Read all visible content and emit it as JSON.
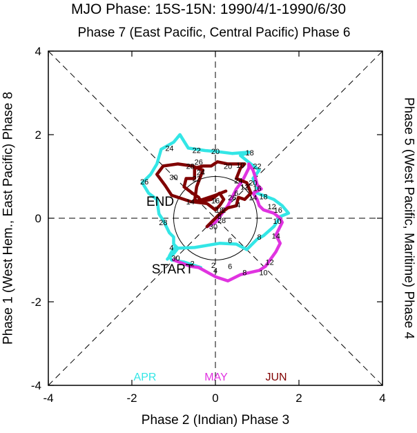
{
  "title": "MJO Phase: 15S-15N: 1990/4/1-1990/6/30",
  "labels": {
    "top": "Phase 7 (East Pacific, Central Pacific) Phase 6",
    "bottom": "Phase 2 (Indian) Phase 3",
    "left": "Phase 1 (West Hem., East Pacific) Phase 8",
    "right": "Phase 5 (West Pacific, Maritime) Phase 4",
    "start": "START",
    "end": "END"
  },
  "chart_data": {
    "type": "line",
    "xlim": [
      -4,
      4
    ],
    "ylim": [
      -4,
      4
    ],
    "xticks": [
      "-4",
      "-2",
      "0",
      "2",
      "4"
    ],
    "yticks": [
      "-4",
      "-2",
      "0",
      "2",
      "4"
    ],
    "reference_circle_radius": 1,
    "colors": {
      "APR": "#33e6e6",
      "MAY": "#e033e0",
      "JUN": "#800000"
    },
    "series": [
      {
        "name": "APR",
        "points": [
          [
            -0.35,
            -1.18
          ],
          [
            -0.75,
            -1.05
          ],
          [
            -1.05,
            -1.0
          ],
          [
            -1.1,
            -0.9
          ],
          [
            -1.0,
            -0.72
          ],
          [
            -0.5,
            -0.7
          ],
          [
            0.1,
            -0.6
          ],
          [
            0.5,
            -0.62
          ],
          [
            0.75,
            -0.75
          ],
          [
            1.0,
            -0.5
          ],
          [
            1.15,
            -0.42
          ],
          [
            1.4,
            -0.2
          ],
          [
            1.5,
            -0.05
          ],
          [
            1.5,
            0.02
          ],
          [
            1.75,
            0.12
          ],
          [
            1.6,
            0.3
          ],
          [
            1.4,
            0.45
          ],
          [
            1.0,
            0.6
          ],
          [
            1.0,
            0.75
          ],
          [
            0.9,
            0.95
          ],
          [
            1.05,
            1.15
          ],
          [
            0.85,
            1.3
          ],
          [
            0.6,
            1.5
          ],
          [
            0.8,
            1.58
          ],
          [
            0.4,
            1.55
          ],
          [
            0.0,
            1.6
          ],
          [
            -0.25,
            1.62
          ],
          [
            -0.65,
            1.68
          ],
          [
            -0.85,
            2.0
          ],
          [
            -1.0,
            1.82
          ],
          [
            -1.3,
            1.65
          ],
          [
            -1.4,
            1.3
          ],
          [
            -1.55,
            1.05
          ],
          [
            -1.65,
            0.95
          ],
          [
            -1.75,
            0.85
          ],
          [
            -1.6,
            0.6
          ],
          [
            -1.4,
            0.45
          ],
          [
            -1.35,
            0.1
          ],
          [
            -1.25,
            -0.05
          ],
          [
            -1.1,
            -0.35
          ],
          [
            -1.0,
            -0.45
          ],
          [
            -1.0,
            -0.62
          ],
          [
            -0.9,
            -0.72
          ],
          [
            -1.0,
            -0.85
          ],
          [
            -1.1,
            -0.92
          ],
          [
            -1.15,
            -0.98
          ]
        ],
        "day_labels": [
          {
            "text": "2",
            "x": -0.05,
            "y": -1.12
          },
          {
            "text": "4",
            "x": -1.05,
            "y": -0.7
          },
          {
            "text": "6",
            "x": 0.35,
            "y": -0.53
          },
          {
            "text": "8",
            "x": 1.05,
            "y": -0.45
          },
          {
            "text": "10",
            "x": 1.48,
            "y": -0.07
          },
          {
            "text": "12",
            "x": 1.35,
            "y": 0.28
          },
          {
            "text": "14",
            "x": 0.9,
            "y": 0.5
          },
          {
            "text": "16",
            "x": 1.0,
            "y": 0.72
          },
          {
            "text": "18",
            "x": 0.82,
            "y": 1.57
          },
          {
            "text": "20",
            "x": 0.0,
            "y": 1.6
          },
          {
            "text": "22",
            "x": -0.45,
            "y": 1.63
          },
          {
            "text": "24",
            "x": -1.1,
            "y": 1.68
          },
          {
            "text": "26",
            "x": -1.7,
            "y": 0.88
          },
          {
            "text": "28",
            "x": -1.25,
            "y": -0.1
          },
          {
            "text": "30",
            "x": -0.95,
            "y": -0.95
          }
        ]
      },
      {
        "name": "MAY",
        "points": [
          [
            -1.0,
            -1.0
          ],
          [
            -0.6,
            -1.15
          ],
          [
            -0.4,
            -1.18
          ],
          [
            0.0,
            -1.4
          ],
          [
            0.3,
            -1.5
          ],
          [
            0.6,
            -1.35
          ],
          [
            1.05,
            -1.25
          ],
          [
            1.2,
            -1.15
          ],
          [
            1.45,
            -0.8
          ],
          [
            1.55,
            -0.6
          ],
          [
            1.45,
            -0.4
          ],
          [
            1.6,
            -0.1
          ],
          [
            1.55,
            0.0
          ],
          [
            1.4,
            0.12
          ],
          [
            1.15,
            0.2
          ],
          [
            1.05,
            0.3
          ],
          [
            1.0,
            0.45
          ],
          [
            0.9,
            0.6
          ],
          [
            1.1,
            0.7
          ],
          [
            1.0,
            0.8
          ],
          [
            0.95,
            1.0
          ],
          [
            0.9,
            1.15
          ],
          [
            0.8,
            1.3
          ],
          [
            0.8,
            1.2
          ],
          [
            0.65,
            0.9
          ],
          [
            0.5,
            0.7
          ],
          [
            0.3,
            0.3
          ],
          [
            0.0,
            -0.1
          ],
          [
            -0.2,
            -0.2
          ]
        ],
        "day_labels": [
          {
            "text": "2",
            "x": -0.55,
            "y": -1.08
          },
          {
            "text": "4",
            "x": 0.0,
            "y": -1.25
          },
          {
            "text": "6",
            "x": 0.35,
            "y": -1.15
          },
          {
            "text": "8",
            "x": 0.7,
            "y": -1.3
          },
          {
            "text": "10",
            "x": 1.15,
            "y": -1.3
          },
          {
            "text": "12",
            "x": 1.3,
            "y": -1.05
          },
          {
            "text": "14",
            "x": 1.45,
            "y": -0.42
          },
          {
            "text": "16",
            "x": 1.5,
            "y": 0.2
          },
          {
            "text": "18",
            "x": 1.15,
            "y": 0.52
          },
          {
            "text": "20",
            "x": 0.9,
            "y": 0.85
          },
          {
            "text": "22",
            "x": 1.0,
            "y": 1.25
          },
          {
            "text": "24",
            "x": 0.55,
            "y": 0.9
          },
          {
            "text": "26",
            "x": 0.4,
            "y": 0.5
          },
          {
            "text": "28",
            "x": 0.15,
            "y": -0.05
          },
          {
            "text": "30",
            "x": -0.05,
            "y": -0.2
          }
        ]
      },
      {
        "name": "JUN",
        "points": [
          [
            -0.2,
            -0.2
          ],
          [
            0.1,
            0.1
          ],
          [
            0.3,
            0.25
          ],
          [
            0.5,
            0.3
          ],
          [
            0.55,
            0.5
          ],
          [
            0.7,
            0.45
          ],
          [
            0.85,
            0.6
          ],
          [
            0.75,
            0.85
          ],
          [
            0.5,
            0.95
          ],
          [
            0.6,
            1.2
          ],
          [
            0.7,
            1.3
          ],
          [
            0.3,
            1.3
          ],
          [
            0.05,
            1.35
          ],
          [
            -0.1,
            1.25
          ],
          [
            -0.3,
            1.25
          ],
          [
            -0.5,
            1.2
          ],
          [
            -0.5,
            0.95
          ],
          [
            -0.7,
            0.95
          ],
          [
            -0.75,
            0.75
          ],
          [
            -0.55,
            0.6
          ],
          [
            -0.4,
            0.5
          ],
          [
            -0.35,
            0.4
          ],
          [
            -0.1,
            0.45
          ],
          [
            0.1,
            0.6
          ],
          [
            0.2,
            0.45
          ],
          [
            0.1,
            0.3
          ],
          [
            0.0,
            0.2
          ],
          [
            -0.2,
            0.35
          ],
          [
            -0.6,
            0.4
          ],
          [
            -1.05,
            0.55
          ],
          [
            -1.2,
            0.78
          ],
          [
            -1.4,
            1.05
          ],
          [
            -1.25,
            1.25
          ],
          [
            -0.9,
            1.3
          ],
          [
            -0.55,
            1.25
          ],
          [
            -0.3,
            1.15
          ],
          [
            -0.45,
            0.75
          ],
          [
            -0.5,
            0.4
          ],
          [
            -0.3,
            0.45
          ],
          [
            0.0,
            0.55
          ],
          [
            0.25,
            0.65
          ]
        ],
        "day_labels": [
          {
            "text": "2",
            "x": 0.2,
            "y": 0.2
          },
          {
            "text": "4",
            "x": 0.55,
            "y": 0.32
          },
          {
            "text": "6",
            "x": 0.5,
            "y": 0.6
          },
          {
            "text": "8",
            "x": 0.1,
            "y": 0.05
          },
          {
            "text": "10",
            "x": 0.6,
            "y": 1.27
          },
          {
            "text": "12",
            "x": 0.7,
            "y": 0.75
          },
          {
            "text": "14",
            "x": -0.6,
            "y": 0.4
          },
          {
            "text": "16",
            "x": 0.0,
            "y": 0.42
          },
          {
            "text": "18",
            "x": 0.1,
            "y": 0.2
          },
          {
            "text": "20",
            "x": 0.3,
            "y": 1.25
          },
          {
            "text": "22",
            "x": -0.45,
            "y": 0.95
          },
          {
            "text": "24",
            "x": -0.35,
            "y": 1.1
          },
          {
            "text": "26",
            "x": -0.4,
            "y": 1.35
          },
          {
            "text": "28",
            "x": -0.6,
            "y": 1.25
          },
          {
            "text": "30",
            "x": -1.0,
            "y": 0.98
          }
        ]
      }
    ]
  }
}
